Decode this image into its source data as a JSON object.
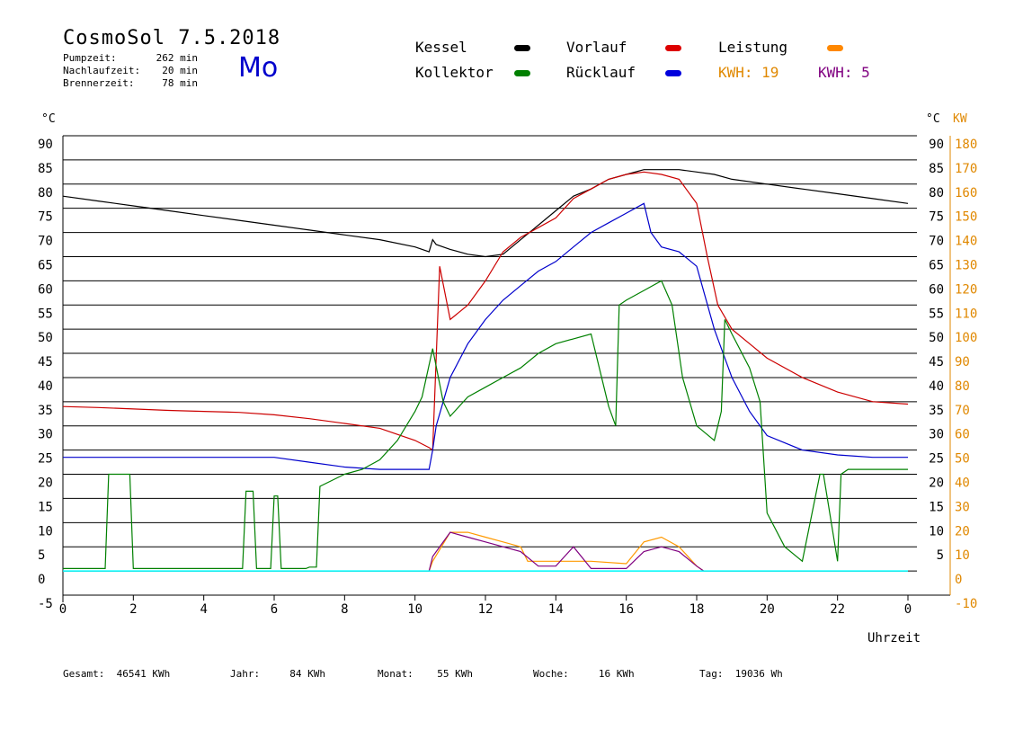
{
  "header": {
    "title": "CosmoSol 7.5.2018",
    "weekday": "Mo",
    "info": [
      {
        "label": "Pumpzeit:",
        "value": "262 min"
      },
      {
        "label": "Nachlaufzeit:",
        "value": "20 min"
      },
      {
        "label": "Brennerzeit:",
        "value": "78 min"
      }
    ]
  },
  "legend": {
    "kessel": "Kessel",
    "kollektor": "Kollektor",
    "vorlauf": "Vorlauf",
    "ruecklauf": "Rücklauf",
    "leistung": "Leistung",
    "kwh1": "KWH: 19",
    "kwh2": "KWH: 5"
  },
  "colors": {
    "kessel": "#000000",
    "kollektor": "#008000",
    "vorlauf": "#cc0000",
    "ruecklauf": "#0000cc",
    "leistung": "#ff9900",
    "purple": "#800080",
    "cyan": "#00ffff",
    "kwh_orange": "#e08800",
    "kwh_purple": "#800080"
  },
  "footer": {
    "gesamt": "Gesamt:  46541 KWh",
    "jahr": "Jahr:     84 KWh",
    "monat": "Monat:    55 KWh",
    "woche": "Woche:     16 KWh",
    "tag": "Tag:  19036 Wh"
  },
  "chart_data": {
    "type": "line",
    "xlabel": "Uhrzeit",
    "ylabel_left": "°C",
    "ylabel_right_temp": "°C",
    "ylabel_right_kw": "KW",
    "xlim": [
      0,
      24
    ],
    "ylim_left": [
      -5,
      90
    ],
    "ylim_right_kw": [
      -10,
      180
    ],
    "x_ticks": [
      "0",
      "2",
      "4",
      "6",
      "8",
      "10",
      "12",
      "14",
      "16",
      "18",
      "20",
      "22",
      "0"
    ],
    "y_ticks_left": [
      "90",
      "85",
      "80",
      "75",
      "70",
      "65",
      "60",
      "55",
      "50",
      "45",
      "40",
      "35",
      "30",
      "25",
      "20",
      "15",
      "10",
      "5",
      "0",
      "-5"
    ],
    "y_ticks_right_temp": [
      "90",
      "85",
      "80",
      "75",
      "70",
      "65",
      "60",
      "55",
      "50",
      "45",
      "40",
      "35",
      "30",
      "25",
      "20",
      "15",
      "10",
      "5"
    ],
    "y_ticks_right_kw": [
      "180",
      "170",
      "160",
      "150",
      "140",
      "130",
      "120",
      "110",
      "100",
      "90",
      "80",
      "70",
      "60",
      "50",
      "40",
      "30",
      "20",
      "10",
      "0",
      "-10"
    ],
    "grid": true,
    "series": [
      {
        "name": "Kessel",
        "key": "kessel",
        "x": [
          0,
          1,
          2,
          3,
          4,
          5,
          6,
          7,
          8,
          9,
          10,
          10.4,
          10.5,
          10.6,
          11,
          11.5,
          12,
          12.5,
          13,
          13.5,
          14,
          14.5,
          15,
          15.5,
          16,
          16.5,
          17,
          17.5,
          18,
          18.5,
          19,
          20,
          21,
          22,
          23,
          24
        ],
        "y": [
          77.5,
          76.5,
          75.5,
          74.5,
          73.5,
          72.5,
          71.5,
          70.5,
          69.5,
          68.5,
          67,
          66,
          68.5,
          67.5,
          66.5,
          65.5,
          65,
          65.5,
          68.5,
          71.5,
          74.5,
          77.5,
          79,
          81,
          82,
          83,
          83,
          83,
          82.5,
          82,
          81,
          80,
          79,
          78,
          77,
          76
        ]
      },
      {
        "name": "Vorlauf",
        "key": "vorlauf",
        "x": [
          0,
          1,
          2,
          3,
          4,
          5,
          6,
          7,
          8,
          9,
          10,
          10.4,
          10.5,
          10.7,
          11,
          11.5,
          12,
          12.5,
          13,
          13.5,
          14,
          14.5,
          15,
          15.5,
          16,
          16.5,
          17,
          17.5,
          18,
          18.3,
          18.6,
          19,
          19.5,
          20,
          21,
          22,
          23,
          24
        ],
        "y": [
          34,
          33.8,
          33.5,
          33.2,
          33,
          32.8,
          32.3,
          31.5,
          30.5,
          29.5,
          27,
          25.5,
          25,
          63,
          52,
          55,
          60,
          66,
          69,
          71,
          73,
          77,
          79,
          81,
          82,
          82.5,
          82,
          81,
          76,
          65,
          55,
          50,
          47,
          44,
          40,
          37,
          35,
          34.5
        ]
      },
      {
        "name": "Rücklauf",
        "key": "ruecklauf",
        "x": [
          0,
          1,
          2,
          3,
          4,
          5,
          6,
          7,
          8,
          9,
          10,
          10.4,
          10.5,
          10.6,
          11,
          11.5,
          12,
          12.5,
          13,
          13.5,
          14,
          14.5,
          15,
          15.5,
          16,
          16.5,
          16.7,
          17,
          17.5,
          18,
          18.5,
          19,
          19.5,
          20,
          21,
          22,
          23,
          24
        ],
        "y": [
          23.5,
          23.5,
          23.5,
          23.5,
          23.5,
          23.5,
          23.5,
          22.5,
          21.5,
          21,
          21,
          21,
          25,
          30,
          40,
          47,
          52,
          56,
          59,
          62,
          64,
          67,
          70,
          72,
          74,
          76,
          70,
          67,
          66,
          63,
          50,
          40,
          33,
          28,
          25,
          24,
          23.5,
          23.5
        ]
      },
      {
        "name": "Kollektor",
        "key": "kollektor",
        "x": [
          0,
          1.2,
          1.3,
          1.9,
          2,
          5.1,
          5.2,
          5.4,
          5.5,
          5.9,
          6,
          6.1,
          6.2,
          6.9,
          7,
          7.2,
          7.3,
          8,
          8.5,
          9,
          9.5,
          10,
          10.2,
          10.5,
          10.8,
          11,
          11.5,
          12,
          12.5,
          13,
          13.5,
          14,
          14.5,
          15,
          15.5,
          15.7,
          15.8,
          16,
          16.5,
          17,
          17.3,
          17.6,
          18,
          18.5,
          18.7,
          18.8,
          19,
          19.5,
          19.8,
          20,
          20.5,
          21,
          21.5,
          21.6,
          22,
          22.1,
          22.3,
          24
        ],
        "y": [
          0.5,
          0.5,
          20,
          20,
          0.5,
          0.5,
          16.5,
          16.5,
          0.5,
          0.5,
          15.5,
          15.5,
          0.5,
          0.5,
          0.8,
          0.8,
          17.5,
          20,
          21,
          23,
          27,
          33,
          36,
          46,
          35,
          32,
          36,
          38,
          40,
          42,
          45,
          47,
          48,
          49,
          34,
          30,
          55,
          56,
          58,
          60,
          55,
          40,
          30,
          27,
          33,
          52,
          49,
          42,
          35,
          12,
          5,
          2,
          20,
          20,
          2,
          20,
          21,
          21
        ]
      },
      {
        "name": "Leistung",
        "key": "leistung",
        "x": [
          0,
          10.4,
          10.5,
          11,
          11.5,
          12,
          12.5,
          13,
          13.2,
          13.5,
          14,
          15,
          16,
          16.5,
          17,
          17.5,
          18,
          18.2,
          24
        ],
        "y": [
          0,
          0,
          2,
          8,
          8,
          7,
          6,
          5,
          2,
          2,
          2,
          2,
          1.5,
          6,
          7,
          5,
          1,
          0,
          0
        ]
      },
      {
        "name": "",
        "key": "purple",
        "x": [
          0,
          10.4,
          10.5,
          11,
          11.5,
          12,
          12.5,
          13,
          13.5,
          14,
          14.5,
          15,
          16,
          16.5,
          17,
          17.5,
          18,
          18.2,
          24
        ],
        "y": [
          0,
          0,
          3,
          8,
          7,
          6,
          5,
          4,
          1,
          1,
          5,
          0.5,
          0.5,
          4,
          5,
          4,
          1,
          0,
          0
        ]
      },
      {
        "name": "",
        "key": "cyan",
        "x": [
          0,
          24
        ],
        "y": [
          0,
          0
        ]
      }
    ]
  }
}
